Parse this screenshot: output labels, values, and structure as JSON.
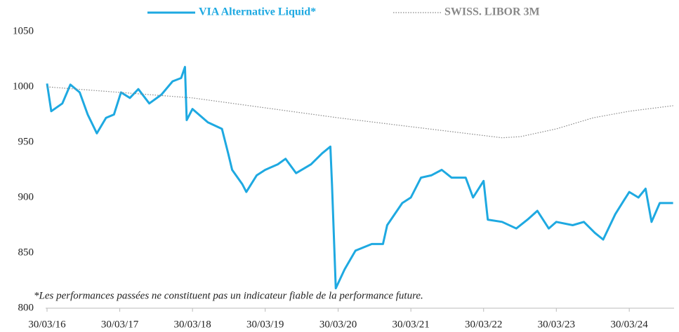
{
  "chart_data": {
    "type": "line",
    "series": [
      {
        "name": "VIA Alternative Liquid*",
        "color": "#1ea9e1",
        "line_style": "solid",
        "x": [
          "2016-03-30",
          "2016-04-20",
          "2016-06-15",
          "2016-07-25",
          "2016-09-10",
          "2016-10-20",
          "2016-12-05",
          "2017-01-20",
          "2017-03-01",
          "2017-04-05",
          "2017-05-20",
          "2017-07-01",
          "2017-08-25",
          "2017-10-25",
          "2017-12-20",
          "2018-02-01",
          "2018-02-20",
          "2018-03-01",
          "2018-03-30",
          "2018-06-15",
          "2018-08-25",
          "2018-09-25",
          "2018-10-15",
          "2018-12-05",
          "2018-12-25",
          "2019-02-15",
          "2019-03-30",
          "2019-06-01",
          "2019-07-10",
          "2019-09-01",
          "2019-11-15",
          "2020-01-10",
          "2020-02-20",
          "2020-02-28",
          "2020-03-18",
          "2020-05-01",
          "2020-06-25",
          "2020-09-15",
          "2020-11-10",
          "2020-12-01",
          "2021-02-15",
          "2021-03-30",
          "2021-05-20",
          "2021-07-10",
          "2021-09-01",
          "2021-10-20",
          "2021-12-30",
          "2022-02-05",
          "2022-03-30",
          "2022-04-20",
          "2022-07-01",
          "2022-09-10",
          "2022-11-05",
          "2022-12-25",
          "2023-02-20",
          "2023-03-30",
          "2023-06-20",
          "2023-08-15",
          "2023-10-10",
          "2023-11-20",
          "2024-01-20",
          "2024-03-05",
          "2024-03-30",
          "2024-05-15",
          "2024-06-20",
          "2024-07-20",
          "2024-08-30",
          "2024-11-05"
        ],
        "values": [
          1003,
          978,
          985,
          1002,
          995,
          975,
          958,
          972,
          975,
          995,
          990,
          998,
          985,
          993,
          1005,
          1008,
          1018,
          970,
          980,
          968,
          962,
          940,
          925,
          912,
          905,
          920,
          925,
          930,
          935,
          922,
          930,
          940,
          946,
          912,
          818,
          835,
          852,
          858,
          858,
          875,
          895,
          900,
          918,
          920,
          925,
          918,
          918,
          900,
          915,
          880,
          878,
          872,
          880,
          888,
          872,
          878,
          875,
          878,
          868,
          862,
          885,
          898,
          905,
          900,
          908,
          878,
          895,
          895
        ]
      },
      {
        "name": "SWISS. LIBOR 3M",
        "color": "#888888",
        "line_style": "dotted",
        "x": [
          "2016-03-30",
          "2018-03-30",
          "2020-03-30",
          "2021-03-30",
          "2022-03-30",
          "2022-07-01",
          "2022-10-01",
          "2023-03-30",
          "2023-10-01",
          "2024-03-30",
          "2024-11-05"
        ],
        "values": [
          1000,
          990,
          972,
          964,
          956,
          954,
          955,
          962,
          972,
          978,
          983
        ]
      }
    ],
    "xlim": [
      "2016-03-30",
      "2024-11-10"
    ],
    "xticks": [
      {
        "value": "2016-03-30",
        "label": "30/03/16"
      },
      {
        "value": "2017-03-30",
        "label": "30/03/17"
      },
      {
        "value": "2018-03-30",
        "label": "30/03/18"
      },
      {
        "value": "2019-03-30",
        "label": "30/03/19"
      },
      {
        "value": "2020-03-30",
        "label": "30/03/20"
      },
      {
        "value": "2021-03-30",
        "label": "30/03/21"
      },
      {
        "value": "2022-03-30",
        "label": "30/03/22"
      },
      {
        "value": "2023-03-30",
        "label": "30/03/23"
      },
      {
        "value": "2024-03-30",
        "label": "30/03/24"
      }
    ],
    "ylim": [
      800,
      1050
    ],
    "yticks": [
      800,
      850,
      900,
      950,
      1000,
      1050
    ],
    "grid": false,
    "legend": "top",
    "annotation": "*Les performances passées ne constituent pas un indicateur fiable de la performance future."
  }
}
